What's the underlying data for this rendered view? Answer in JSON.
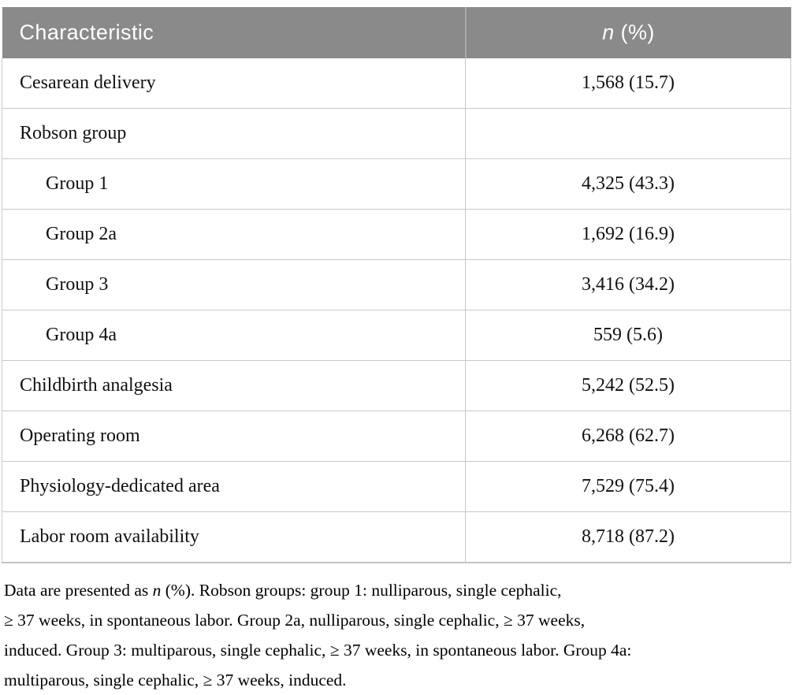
{
  "table": {
    "header": {
      "characteristic": "Characteristic",
      "value_italic": "n",
      "value_rest": " (%)"
    },
    "rows": [
      {
        "label": "Cesarean delivery",
        "value": "1,568 (15.7)",
        "indent": false
      },
      {
        "label": "Robson group",
        "value": "",
        "indent": false
      },
      {
        "label": "Group 1",
        "value": "4,325 (43.3)",
        "indent": true
      },
      {
        "label": "Group 2a",
        "value": "1,692 (16.9)",
        "indent": true
      },
      {
        "label": "Group 3",
        "value": "3,416 (34.2)",
        "indent": true
      },
      {
        "label": "Group 4a",
        "value": "559 (5.6)",
        "indent": true
      },
      {
        "label": "Childbirth analgesia",
        "value": "5,242 (52.5)",
        "indent": false
      },
      {
        "label": "Operating room",
        "value": "6,268 (62.7)",
        "indent": false
      },
      {
        "label": "Physiology-dedicated area",
        "value": "7,529 (75.4)",
        "indent": false
      },
      {
        "label": "Labor room availability",
        "value": "8,718 (87.2)",
        "indent": false
      }
    ]
  },
  "footnote": {
    "line1_pre": "Data are presented as ",
    "line1_italic": "n",
    "line1_post": " (%). Robson groups: group 1: nulliparous, single cephalic,",
    "line2": "≥ 37 weeks, in spontaneous labor. Group 2a, nulliparous, single cephalic, ≥ 37 weeks,",
    "line3": "induced. Group 3: multiparous, single cephalic, ≥ 37 weeks, in spontaneous labor. Group 4a:",
    "line4": "multiparous, single cephalic, ≥ 37 weeks, induced."
  },
  "colors": {
    "header_bg": "#8a8a8a",
    "header_divider": "#a9a9a9",
    "grid": "#c9c9c9",
    "bottom_border": "#c2c2c2",
    "header_text": "#ffffff",
    "body_text": "#111111"
  }
}
